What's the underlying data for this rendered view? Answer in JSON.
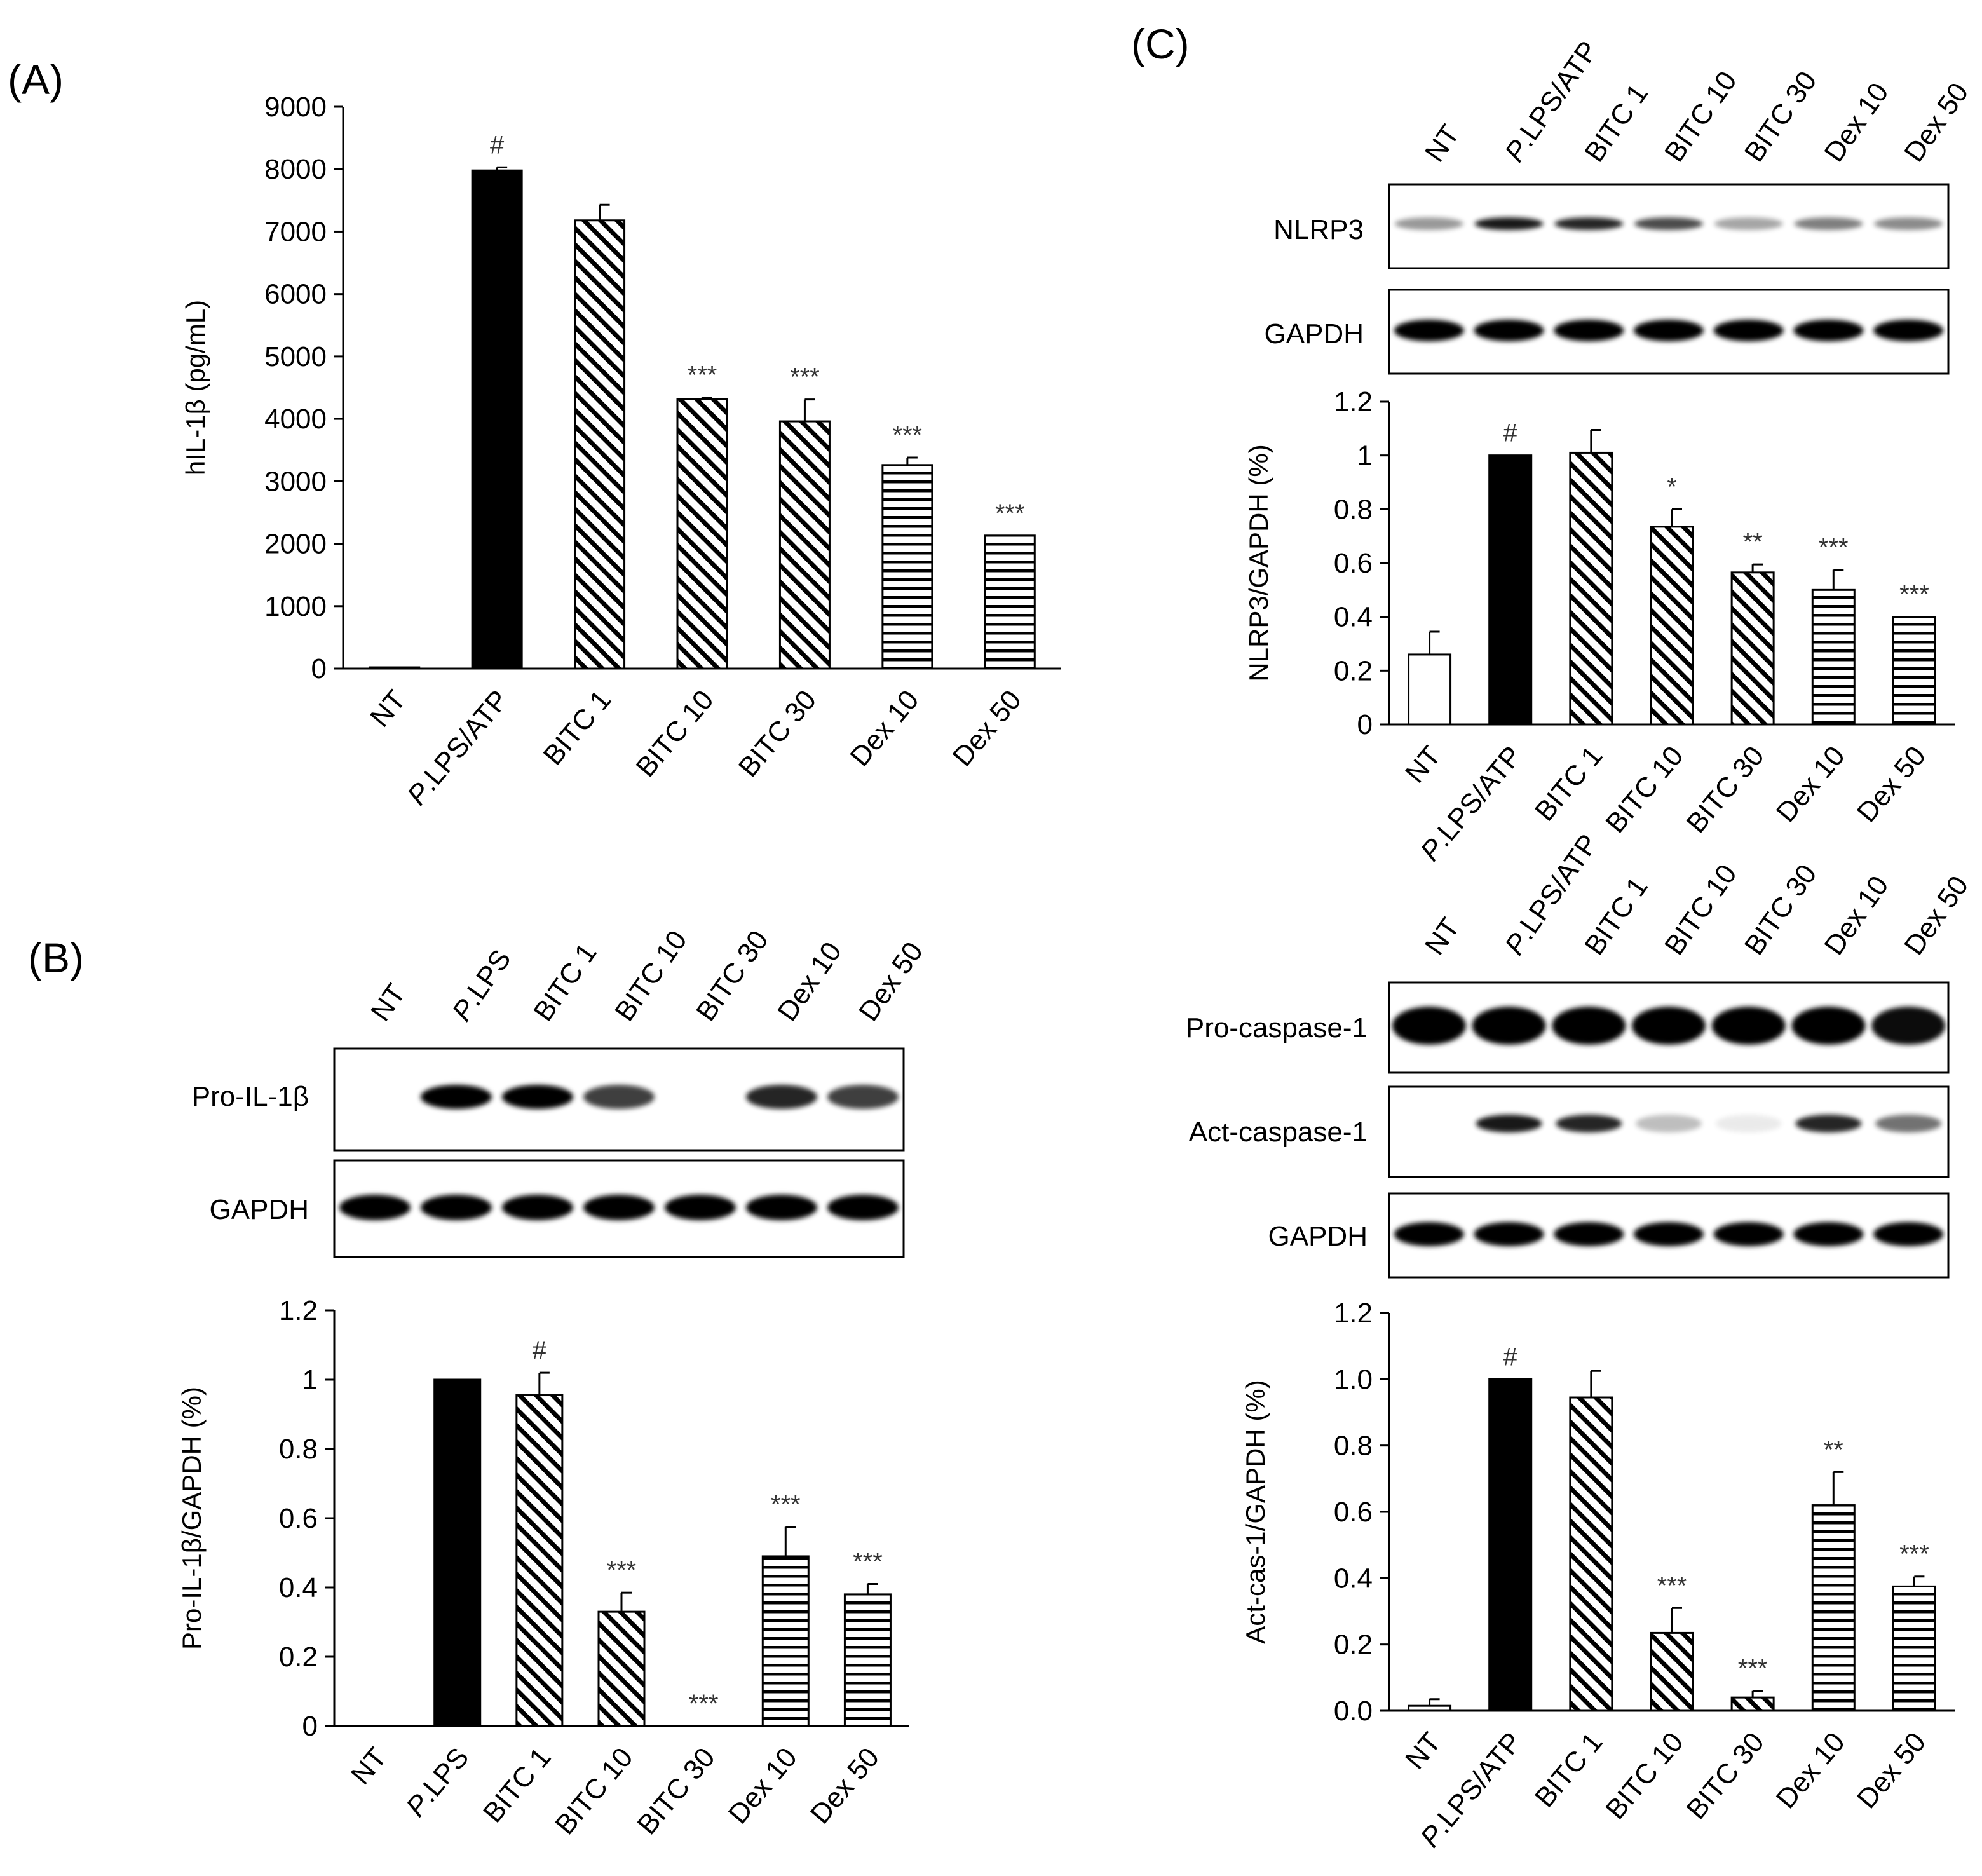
{
  "panels": {
    "a": "(A)",
    "b": "(B)",
    "c": "(C)"
  },
  "blots": {
    "b_lanes": [
      "NT",
      "P.LPS",
      "BITC 1",
      "BITC 10",
      "BITC 30",
      "Dex 10",
      "Dex 50"
    ],
    "b_rows": [
      "Pro-IL-1β",
      "GAPDH"
    ],
    "c1_lanes": [
      "NT",
      "P.LPS/ATP",
      "BITC 1",
      "BITC 10",
      "BITC 30",
      "Dex 10",
      "Dex 50"
    ],
    "c1_rows": [
      "NLRP3",
      "GAPDH"
    ],
    "c2_lanes": [
      "NT",
      "P.LPS/ATP",
      "BITC 1",
      "BITC 10",
      "BITC 30",
      "Dex 10",
      "Dex 50"
    ],
    "c2_rows": [
      "Pro-caspase-1",
      "Act-caspase-1",
      "GAPDH"
    ]
  },
  "colors": {
    "bar_edge": "#000000",
    "hatch": "#000000",
    "fill_solid": "#000000",
    "fill_open": "#ffffff"
  },
  "chart_data": [
    {
      "id": "A",
      "type": "bar",
      "categories": [
        "NT",
        "P.LPS/ATP",
        "BITC 1",
        "BITC 10",
        "BITC 30",
        "Dex 10",
        "Dex 50"
      ],
      "values": [
        20,
        7980,
        7180,
        4320,
        3960,
        3260,
        2130
      ],
      "errors": [
        0,
        50,
        250,
        20,
        350,
        120,
        0
      ],
      "annotations": [
        "",
        "#",
        "",
        "***",
        "***",
        "***",
        "***"
      ],
      "fills": [
        "solid",
        "solid",
        "diagonal",
        "diagonal",
        "diagonal",
        "horizontal",
        "horizontal"
      ],
      "ylabel": "hIL-1β (pg/mL)",
      "ylim": [
        0,
        9000
      ],
      "yticks": [
        "0",
        "1000",
        "2000",
        "3000",
        "4000",
        "5000",
        "6000",
        "7000",
        "8000",
        "9000"
      ],
      "grid": false
    },
    {
      "id": "B",
      "type": "bar",
      "categories": [
        "NT",
        "P.LPS",
        "BITC 1",
        "BITC 10",
        "BITC 30",
        "Dex 10",
        "Dex 50"
      ],
      "values": [
        0,
        1.0,
        0.955,
        0.33,
        0,
        0.49,
        0.38
      ],
      "errors": [
        0,
        0,
        0.065,
        0.055,
        0,
        0.085,
        0.03
      ],
      "annotations": [
        "",
        "",
        "#",
        "***",
        "***",
        "***",
        "***"
      ],
      "fills": [
        "solid",
        "solid",
        "diagonal",
        "diagonal",
        "diagonal",
        "horizontal",
        "horizontal"
      ],
      "ylabel": "Pro-IL-1β/GAPDH (%)",
      "ylim": [
        0,
        1.2
      ],
      "yticks": [
        "0",
        "0.2",
        "0.4",
        "0.6",
        "0.8",
        "1",
        "1.2"
      ],
      "grid": false
    },
    {
      "id": "C1",
      "type": "bar",
      "categories": [
        "NT",
        "P.LPS/ATP",
        "BITC 1",
        "BITC 10",
        "BITC 30",
        "Dex 10",
        "Dex 50"
      ],
      "values": [
        0.26,
        1.0,
        1.01,
        0.735,
        0.565,
        0.5,
        0.4
      ],
      "errors": [
        0.085,
        0,
        0.085,
        0.065,
        0.03,
        0.075,
        0
      ],
      "annotations": [
        "",
        "#",
        "",
        "*",
        "**",
        "***",
        "***"
      ],
      "fills": [
        "open",
        "solid",
        "diagonal",
        "diagonal",
        "diagonal",
        "horizontal",
        "horizontal"
      ],
      "ylabel": "NLRP3/GAPDH (%)",
      "ylim": [
        0,
        1.2
      ],
      "yticks": [
        "0",
        "0.2",
        "0.4",
        "0.6",
        "0.8",
        "1",
        "1.2"
      ],
      "grid": false
    },
    {
      "id": "C2",
      "type": "bar",
      "categories": [
        "NT",
        "P.LPS/ATP",
        "BITC 1",
        "BITC 10",
        "BITC 30",
        "Dex 10",
        "Dex 50"
      ],
      "values": [
        0.015,
        1.0,
        0.945,
        0.235,
        0.04,
        0.62,
        0.375
      ],
      "errors": [
        0.02,
        0,
        0.08,
        0.075,
        0.02,
        0.1,
        0.03
      ],
      "annotations": [
        "",
        "#",
        "",
        "***",
        "***",
        "**",
        "***"
      ],
      "fills": [
        "open",
        "solid",
        "diagonal",
        "diagonal",
        "diagonal",
        "horizontal",
        "horizontal"
      ],
      "ylabel": "Act-cas-1/GAPDH (%)",
      "ylim": [
        0,
        1.2
      ],
      "yticks": [
        "0.0",
        "0.2",
        "0.4",
        "0.6",
        "0.8",
        "1.0",
        "1.2"
      ],
      "grid": false
    }
  ]
}
